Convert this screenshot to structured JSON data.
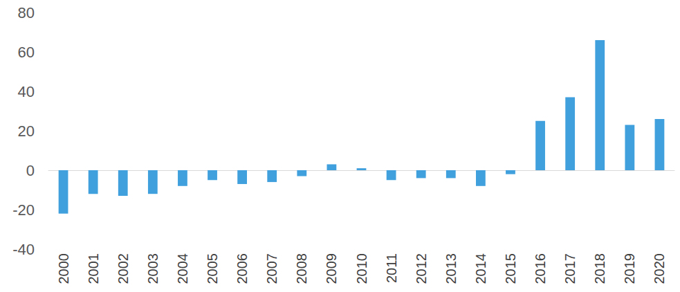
{
  "chart_data": {
    "type": "bar",
    "categories": [
      "2000",
      "2001",
      "2002",
      "2003",
      "2004",
      "2005",
      "2006",
      "2007",
      "2008",
      "2009",
      "2010",
      "2011",
      "2012",
      "2013",
      "2014",
      "2015",
      "2016",
      "2017",
      "2018",
      "2019",
      "2020"
    ],
    "values": [
      -22,
      -12,
      -13,
      -12,
      -8,
      -5,
      -7,
      -6,
      -3,
      3,
      1,
      -5,
      -4,
      -4,
      -8,
      -2,
      25,
      37,
      66,
      23,
      26
    ],
    "color": "#3fa0dd",
    "ylim": [
      -40,
      80
    ],
    "yticks": [
      -40,
      -20,
      0,
      20,
      40,
      60,
      80
    ],
    "grid": false
  }
}
